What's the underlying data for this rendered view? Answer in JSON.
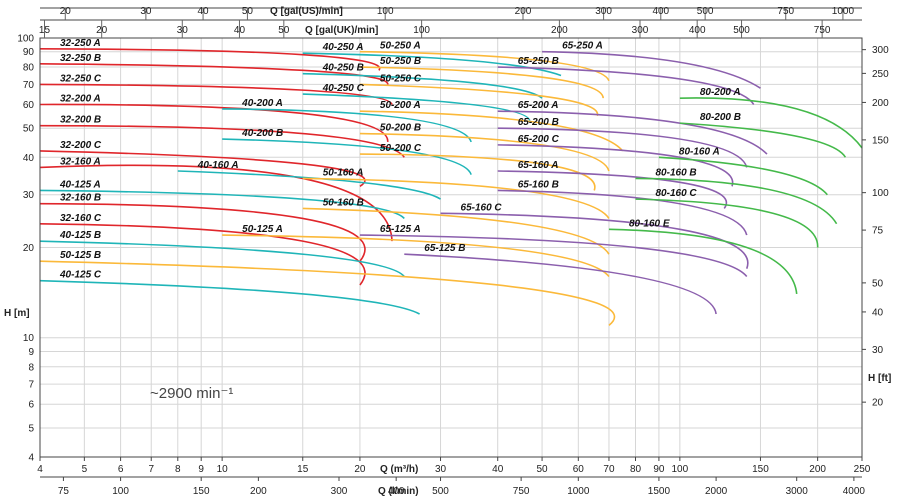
{
  "chart_data": {
    "type": "line",
    "title": "",
    "speed_label": "~2900 min⁻¹",
    "xlabel_m3h": "Q (m³/h)",
    "xlabel_lmin": "Q (l/min)",
    "xlabel_gal_us": "Q [gal(US)/min]",
    "xlabel_gal_uk": "Q [gal(UK)/min]",
    "ylabel_m": "H [m]",
    "ylabel_ft": "H [ft]",
    "x_scale": "log",
    "y_scale": "log",
    "xlim_m3h": [
      4,
      250
    ],
    "ylim_m": [
      4,
      100
    ],
    "grid": true,
    "ticks": {
      "m3h": [
        4,
        5,
        6,
        7,
        8,
        9,
        10,
        15,
        20,
        30,
        40,
        50,
        60,
        70,
        80,
        90,
        100,
        150,
        200,
        250
      ],
      "lmin": [
        75,
        100,
        150,
        200,
        300,
        400,
        500,
        750,
        1000,
        1500,
        2000,
        3000,
        4000
      ],
      "gal_us": [
        20,
        30,
        40,
        50,
        100,
        200,
        300,
        400,
        500,
        750,
        1000
      ],
      "gal_uk": [
        15,
        20,
        30,
        40,
        50,
        100,
        200,
        300,
        400,
        500,
        750
      ],
      "h_m": [
        4,
        5,
        6,
        7,
        8,
        9,
        10,
        20,
        30,
        40,
        50,
        60,
        70,
        80,
        90,
        100
      ],
      "h_ft": [
        20,
        30,
        40,
        50,
        75,
        100,
        150,
        200,
        250,
        300
      ]
    },
    "series": [
      {
        "name": "32-250 A",
        "color": "#e0262b",
        "q": [
          4,
          15,
          22
        ],
        "h": [
          92,
          88,
          78
        ]
      },
      {
        "name": "32-250 B",
        "color": "#e0262b",
        "q": [
          4,
          15,
          23
        ],
        "h": [
          82,
          78,
          70
        ]
      },
      {
        "name": "32-250 C",
        "color": "#e0262b",
        "q": [
          4,
          15,
          23.5
        ],
        "h": [
          70,
          67,
          60
        ]
      },
      {
        "name": "32-200 A",
        "color": "#e0262b",
        "q": [
          4,
          15,
          23
        ],
        "h": [
          60,
          56,
          45
        ]
      },
      {
        "name": "32-200 B",
        "color": "#e0262b",
        "q": [
          4,
          15,
          25
        ],
        "h": [
          51,
          48,
          40
        ]
      },
      {
        "name": "32-200 C",
        "color": "#e0262b",
        "q": [
          4,
          15,
          20
        ],
        "h": [
          42,
          38,
          32
        ]
      },
      {
        "name": "32-160 A",
        "color": "#e0262b",
        "q": [
          4,
          15,
          23.5
        ],
        "h": [
          37,
          34,
          21
        ]
      },
      {
        "name": "32-160 B",
        "color": "#e0262b",
        "q": [
          4,
          15,
          20
        ],
        "h": [
          28,
          25,
          18
        ]
      },
      {
        "name": "32-160 C",
        "color": "#e0262b",
        "q": [
          4,
          15,
          20
        ],
        "h": [
          24,
          21,
          15
        ]
      },
      {
        "name": "40-250 A",
        "color": "#1fb5b8",
        "q": [
          15,
          35,
          55
        ],
        "h": [
          89,
          84,
          75
        ]
      },
      {
        "name": "40-250 B",
        "color": "#1fb5b8",
        "q": [
          15,
          35,
          50
        ],
        "h": [
          76,
          71,
          63
        ]
      },
      {
        "name": "40-250 C",
        "color": "#1fb5b8",
        "q": [
          15,
          35,
          47
        ],
        "h": [
          65,
          60,
          53
        ]
      },
      {
        "name": "40-200 A",
        "color": "#1fb5b8",
        "q": [
          10,
          25,
          35
        ],
        "h": [
          58,
          54,
          45
        ]
      },
      {
        "name": "40-200 B",
        "color": "#1fb5b8",
        "q": [
          10,
          25,
          35
        ],
        "h": [
          46,
          42,
          35
        ]
      },
      {
        "name": "40-160 A",
        "color": "#1fb5b8",
        "q": [
          8,
          20,
          30
        ],
        "h": [
          36,
          33,
          29
        ]
      },
      {
        "name": "40-125 A",
        "color": "#1fb5b8",
        "q": [
          4,
          15,
          25
        ],
        "h": [
          31,
          29,
          25
        ]
      },
      {
        "name": "40-125 B",
        "color": "#1fb5b8",
        "q": [
          4,
          15,
          25
        ],
        "h": [
          21,
          19,
          16
        ]
      },
      {
        "name": "40-125 C",
        "color": "#1fb5b8",
        "q": [
          4,
          15,
          27
        ],
        "h": [
          15.5,
          14,
          12
        ]
      },
      {
        "name": "50-250 A",
        "color": "#fbb93a",
        "q": [
          20,
          50,
          70
        ],
        "h": [
          90,
          84,
          72
        ]
      },
      {
        "name": "50-250 B",
        "color": "#fbb93a",
        "q": [
          20,
          50,
          68
        ],
        "h": [
          80,
          74,
          63
        ]
      },
      {
        "name": "50-250 C",
        "color": "#fbb93a",
        "q": [
          20,
          50,
          66
        ],
        "h": [
          70,
          64,
          55
        ]
      },
      {
        "name": "50-200 A",
        "color": "#fbb93a",
        "q": [
          20,
          50,
          75
        ],
        "h": [
          57,
          52,
          42
        ]
      },
      {
        "name": "50-200 B",
        "color": "#fbb93a",
        "q": [
          20,
          50,
          70
        ],
        "h": [
          48,
          44,
          36
        ]
      },
      {
        "name": "50-200 C",
        "color": "#fbb93a",
        "q": [
          20,
          50,
          65
        ],
        "h": [
          41,
          38,
          31
        ]
      },
      {
        "name": "50-160 A",
        "color": "#fbb93a",
        "q": [
          15,
          45,
          70
        ],
        "h": [
          34,
          31,
          25
        ]
      },
      {
        "name": "50-160 B",
        "color": "#fbb93a",
        "q": [
          15,
          45,
          70
        ],
        "h": [
          27,
          24,
          19
        ]
      },
      {
        "name": "50-125 A",
        "color": "#fbb93a",
        "q": [
          10,
          40,
          70
        ],
        "h": [
          22,
          20,
          16
        ]
      },
      {
        "name": "50-125 B",
        "color": "#fbb93a",
        "q": [
          4,
          40,
          70
        ],
        "h": [
          18,
          15,
          11
        ]
      },
      {
        "name": "65-250 A",
        "color": "#8b5fad",
        "q": [
          50,
          100,
          150
        ],
        "h": [
          90,
          83,
          68
        ]
      },
      {
        "name": "65-250 B",
        "color": "#8b5fad",
        "q": [
          40,
          100,
          145
        ],
        "h": [
          80,
          73,
          60
        ]
      },
      {
        "name": "65-200 A",
        "color": "#8b5fad",
        "q": [
          40,
          100,
          155
        ],
        "h": [
          57,
          52,
          41
        ]
      },
      {
        "name": "65-200 B",
        "color": "#8b5fad",
        "q": [
          40,
          100,
          140
        ],
        "h": [
          50,
          46,
          37
        ]
      },
      {
        "name": "65-200 C",
        "color": "#8b5fad",
        "q": [
          40,
          100,
          130
        ],
        "h": [
          44,
          40,
          32
        ]
      },
      {
        "name": "65-160 A",
        "color": "#8b5fad",
        "q": [
          40,
          100,
          125
        ],
        "h": [
          36,
          33,
          27
        ]
      },
      {
        "name": "65-160 B",
        "color": "#8b5fad",
        "q": [
          40,
          100,
          140
        ],
        "h": [
          31,
          28,
          22
        ]
      },
      {
        "name": "65-160 C",
        "color": "#8b5fad",
        "q": [
          30,
          100,
          140
        ],
        "h": [
          26,
          23,
          17
        ]
      },
      {
        "name": "65-125 A",
        "color": "#8b5fad",
        "q": [
          20,
          80,
          140
        ],
        "h": [
          22,
          20,
          16
        ]
      },
      {
        "name": "65-125 B",
        "color": "#8b5fad",
        "q": [
          25,
          80,
          120
        ],
        "h": [
          19,
          16,
          12
        ]
      },
      {
        "name": "80-200 A",
        "color": "#44b94a",
        "q": [
          100,
          180,
          250
        ],
        "h": [
          63,
          58,
          43
        ]
      },
      {
        "name": "80-200 B",
        "color": "#44b94a",
        "q": [
          100,
          180,
          230
        ],
        "h": [
          52,
          47,
          40
        ]
      },
      {
        "name": "80-160 A",
        "color": "#44b94a",
        "q": [
          90,
          160,
          210
        ],
        "h": [
          40,
          36,
          30
        ]
      },
      {
        "name": "80-160 B",
        "color": "#44b94a",
        "q": [
          80,
          160,
          220
        ],
        "h": [
          34,
          31,
          24
        ]
      },
      {
        "name": "80-160 C",
        "color": "#44b94a",
        "q": [
          80,
          160,
          200
        ],
        "h": [
          29,
          26,
          20
        ]
      },
      {
        "name": "80-160 E",
        "color": "#44b94a",
        "q": [
          70,
          140,
          180
        ],
        "h": [
          23,
          20,
          14
        ]
      }
    ]
  }
}
